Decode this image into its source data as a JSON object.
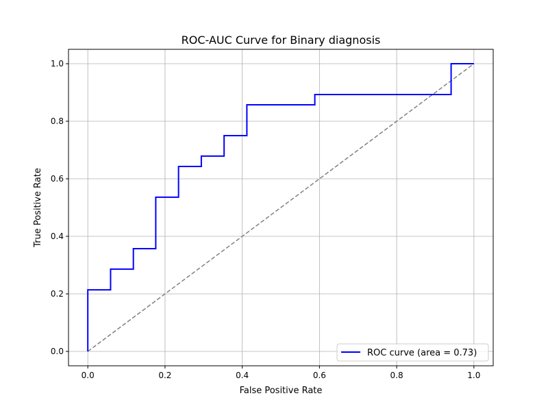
{
  "chart_data": {
    "type": "line",
    "title": "ROC-AUC Curve for Binary diagnosis",
    "xlabel": "False Positive Rate",
    "ylabel": "True Positive Rate",
    "xlim": [
      -0.05,
      1.05
    ],
    "ylim": [
      -0.05,
      1.05
    ],
    "xticks": [
      "0.0",
      "0.2",
      "0.4",
      "0.6",
      "0.8",
      "1.0"
    ],
    "yticks": [
      "0.0",
      "0.2",
      "0.4",
      "0.6",
      "0.8",
      "1.0"
    ],
    "grid": true,
    "legend_placement": "lower-right",
    "series": [
      {
        "name": "ROC curve (area = 0.73)",
        "color": "#0000ff",
        "style": "solid-step",
        "x": [
          0,
          0,
          0.059,
          0.059,
          0.118,
          0.118,
          0.176,
          0.176,
          0.235,
          0.235,
          0.294,
          0.294,
          0.353,
          0.353,
          0.412,
          0.412,
          0.588,
          0.588,
          0.941,
          0.941,
          1.0
        ],
        "y": [
          0,
          0.214,
          0.214,
          0.286,
          0.286,
          0.357,
          0.357,
          0.536,
          0.536,
          0.643,
          0.643,
          0.679,
          0.679,
          0.75,
          0.75,
          0.857,
          0.857,
          0.893,
          0.893,
          1.0,
          1.0
        ]
      },
      {
        "color": "#808080",
        "style": "dashed",
        "x": [
          0,
          1
        ],
        "y": [
          0,
          1
        ]
      }
    ]
  }
}
